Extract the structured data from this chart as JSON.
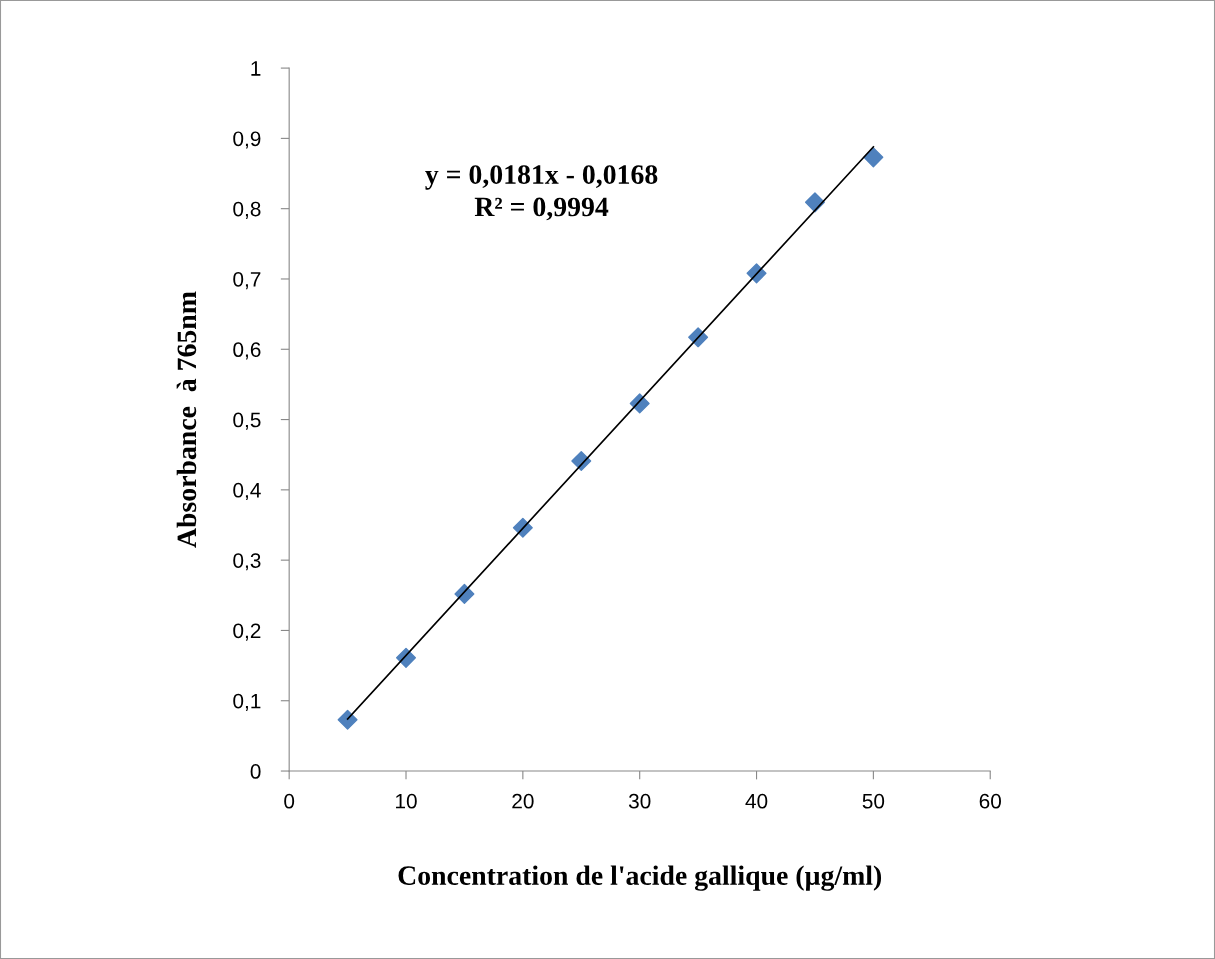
{
  "chart_data": {
    "type": "scatter",
    "xlabel": "Concentration de l'acide gallique (µg/ml)",
    "ylabel": "Absorbance  à 765nm",
    "series": [
      {
        "color": "#4f81bd",
        "marker": "diamond",
        "x": [
          5,
          10,
          15,
          20,
          25,
          30,
          35,
          40,
          45,
          50
        ],
        "values": [
          0.073,
          0.161,
          0.252,
          0.346,
          0.441,
          0.523,
          0.617,
          0.708,
          0.809,
          0.873
        ]
      },
      {
        "type": "line",
        "color": "#000000",
        "marker": "none",
        "line_style": "solid",
        "x": [
          5,
          50
        ],
        "values": [
          0.074,
          0.888
        ]
      }
    ],
    "annotations": [
      "y = 0,0181x - 0,0168",
      "R² = 0,9994"
    ],
    "xlim": [
      0,
      60
    ],
    "xticks": [
      0,
      10,
      20,
      30,
      40,
      50,
      60
    ],
    "ylim": [
      0,
      1
    ],
    "yticks": [
      0,
      {
        "value": 0.1,
        "label": "0,1"
      },
      {
        "value": 0.2,
        "label": "0,2"
      },
      {
        "value": 0.3,
        "label": "0,3"
      },
      {
        "value": 0.4,
        "label": "0,4"
      },
      {
        "value": 0.5,
        "label": "0,5"
      },
      {
        "value": 0.6,
        "label": "0,6"
      },
      {
        "value": 0.7,
        "label": "0,7"
      },
      {
        "value": 0.8,
        "label": "0,8"
      },
      {
        "value": 0.9,
        "label": "0,9"
      },
      1
    ],
    "grid": false,
    "legend": false
  }
}
